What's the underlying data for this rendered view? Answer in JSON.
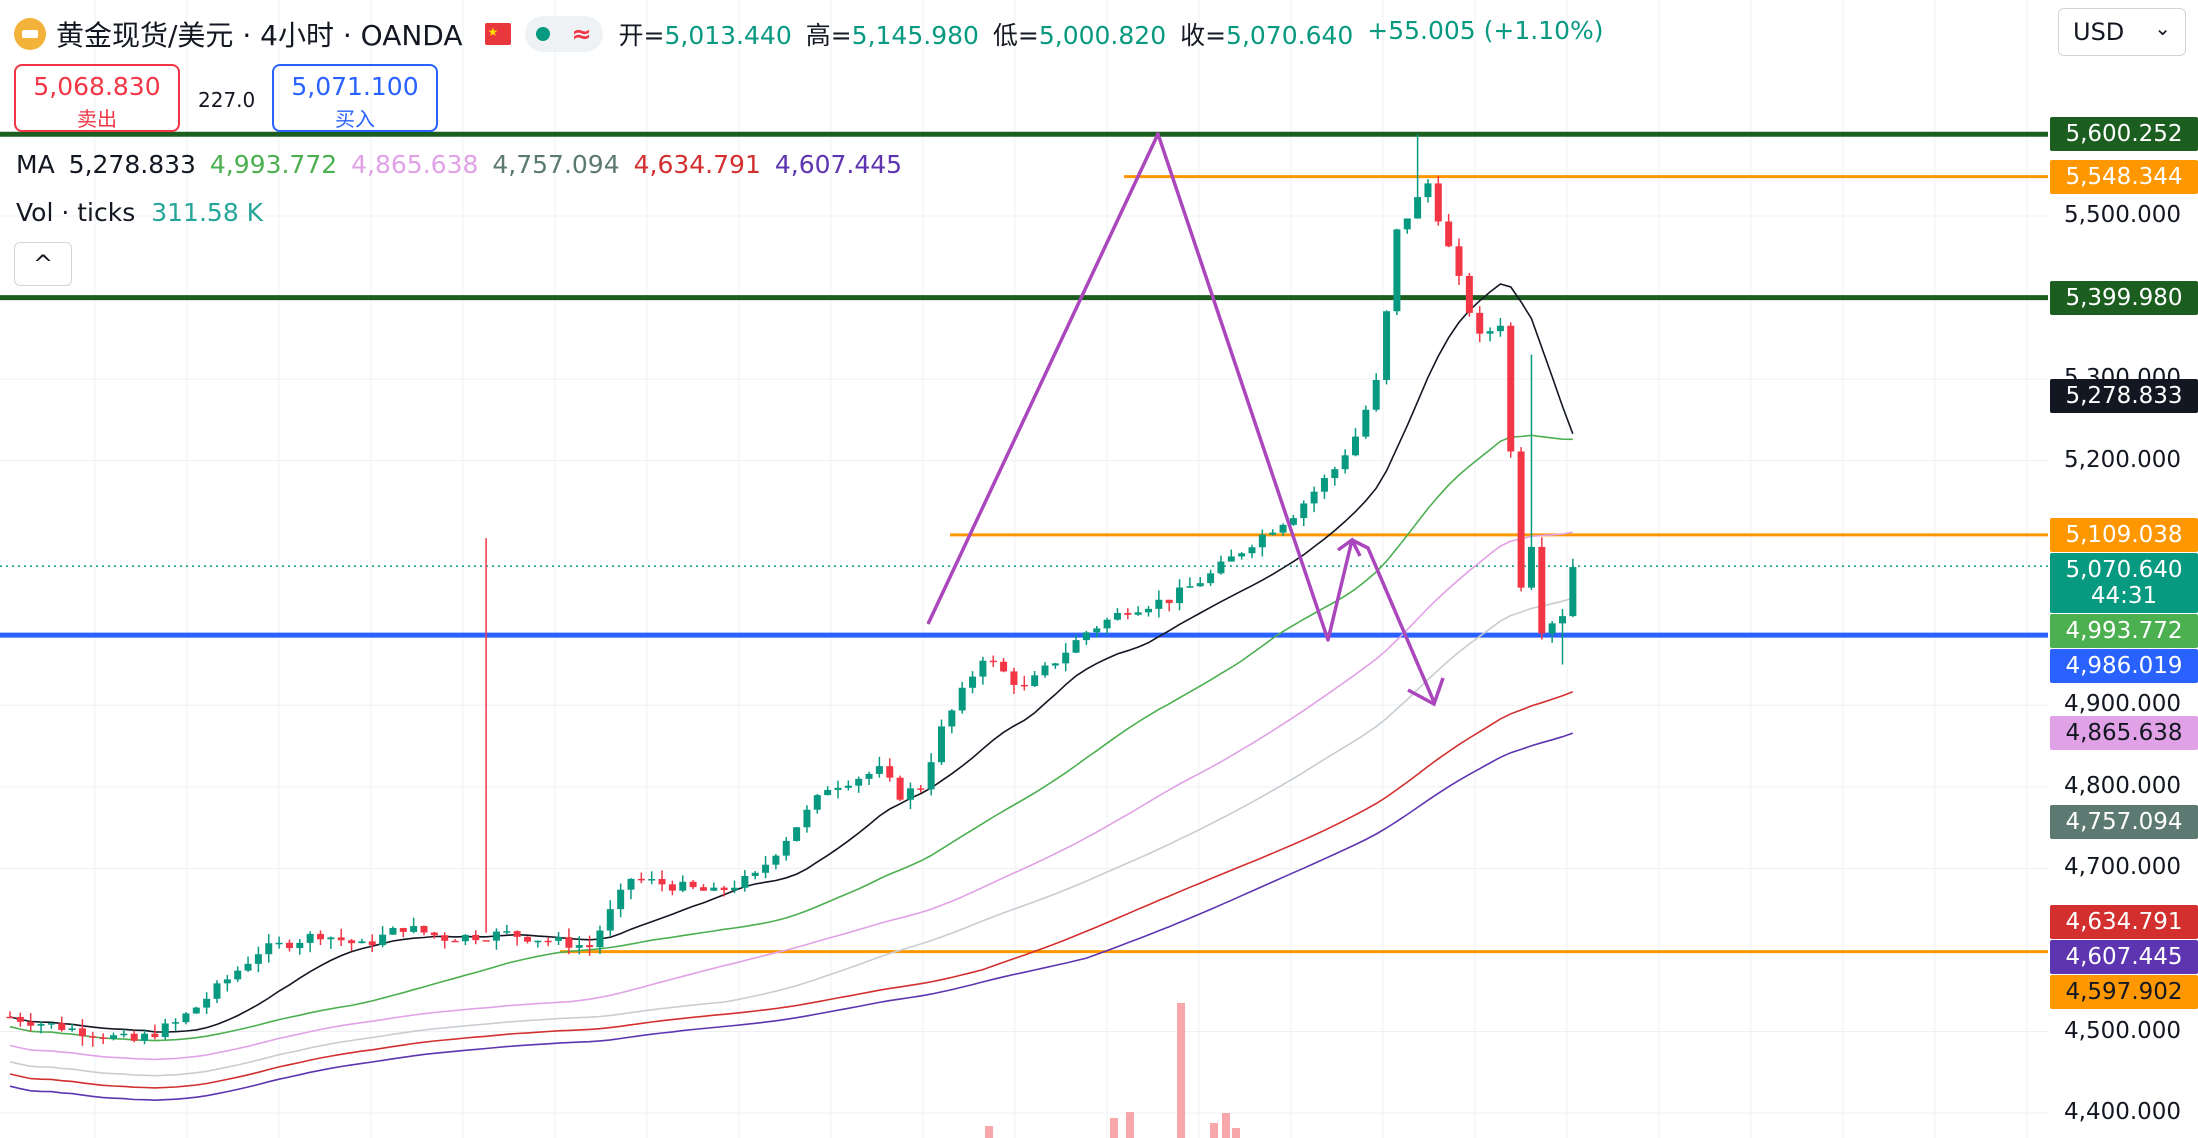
{
  "header": {
    "title": "黄金现货/美元 · 4小时 · OANDA",
    "status_wave": "≈",
    "ohlc": [
      {
        "label": "开=",
        "value": "5,013.440"
      },
      {
        "label": "高=",
        "value": "5,145.980"
      },
      {
        "label": "低=",
        "value": "5,000.820"
      },
      {
        "label": "收=",
        "value": "5,070.640"
      }
    ],
    "change": "+55.005 (+1.10%)"
  },
  "currency": {
    "value": "USD",
    "chevron": "⌄"
  },
  "trade": {
    "sell_price": "5,068.830",
    "sell_label": "卖出",
    "spread": "227.0",
    "buy_price": "5,071.100",
    "buy_label": "买入"
  },
  "legend": {
    "ma_label": "MA",
    "ma_values": [
      {
        "value": "5,278.833",
        "color": "#131722"
      },
      {
        "value": "4,993.772",
        "color": "#4caf50"
      },
      {
        "value": "4,865.638",
        "color": "#e1a1e6"
      },
      {
        "value": "4,757.094",
        "color": "#5d7a72"
      },
      {
        "value": "4,634.791",
        "color": "#d32f2f"
      },
      {
        "value": "4,607.445",
        "color": "#5e35b1"
      }
    ],
    "vol_label": "Vol · ticks",
    "vol_value": "311.58 K",
    "collapse_glyph": "^"
  },
  "axis": {
    "ticks": [
      "5,500.000",
      "5,300.000",
      "5,200.000",
      "4,900.000",
      "4,800.000",
      "4,700.000",
      "4,500.000",
      "4,400.000"
    ],
    "ticks_raw": [
      5500,
      5300,
      5200,
      4900,
      4800,
      4700,
      4500,
      4400
    ],
    "labels": [
      {
        "text": "5,600.252",
        "value": 5600.252,
        "bg": "#1b5e20"
      },
      {
        "text": "5,548.344",
        "value": 5548.344,
        "bg": "#ff9800"
      },
      {
        "text": "5,399.980",
        "value": 5399.98,
        "bg": "#1b5e20"
      },
      {
        "text": "5,278.833",
        "value": 5278.833,
        "bg": "#131722"
      },
      {
        "text": "5,109.038",
        "value": 5109.038,
        "bg": "#ff9800"
      },
      {
        "text": "5,070.640",
        "value": 5070.64,
        "bg": "#089981",
        "sub": "44:31"
      },
      {
        "text": "4,993.772",
        "value": 4993.772,
        "bg": "#4caf50"
      },
      {
        "text": "4,986.019",
        "value": 4986.019,
        "bg": "#2962ff"
      },
      {
        "text": "4,865.638",
        "value": 4865.638,
        "bg": "#e1a1e6"
      },
      {
        "text": "4,757.094",
        "value": 4757.094,
        "bg": "#5d7a72"
      },
      {
        "text": "4,634.791",
        "value": 4634.791,
        "bg": "#d32f2f"
      },
      {
        "text": "4,607.445",
        "value": 4607.445,
        "bg": "#5e35b1"
      },
      {
        "text": "4,597.902",
        "value": 4597.902,
        "bg": "#ff9800"
      }
    ]
  },
  "chart_data": {
    "type": "candlestick",
    "symbol": "XAU/USD",
    "timeframe": "4h",
    "ylim": [
      4385,
      5640
    ],
    "horizontal_lines": [
      {
        "price": 5600.252,
        "color": "#1b5e20"
      },
      {
        "price": 5548.344,
        "color": "#ff9800"
      },
      {
        "price": 5399.98,
        "color": "#1b5e20"
      },
      {
        "price": 5109.038,
        "color": "#ff9800"
      },
      {
        "price": 4986.019,
        "color": "#2962ff"
      },
      {
        "price": 4597.902,
        "color": "#ff9800"
      }
    ],
    "last_price": 5070.64,
    "countdown": "44:31"
  }
}
